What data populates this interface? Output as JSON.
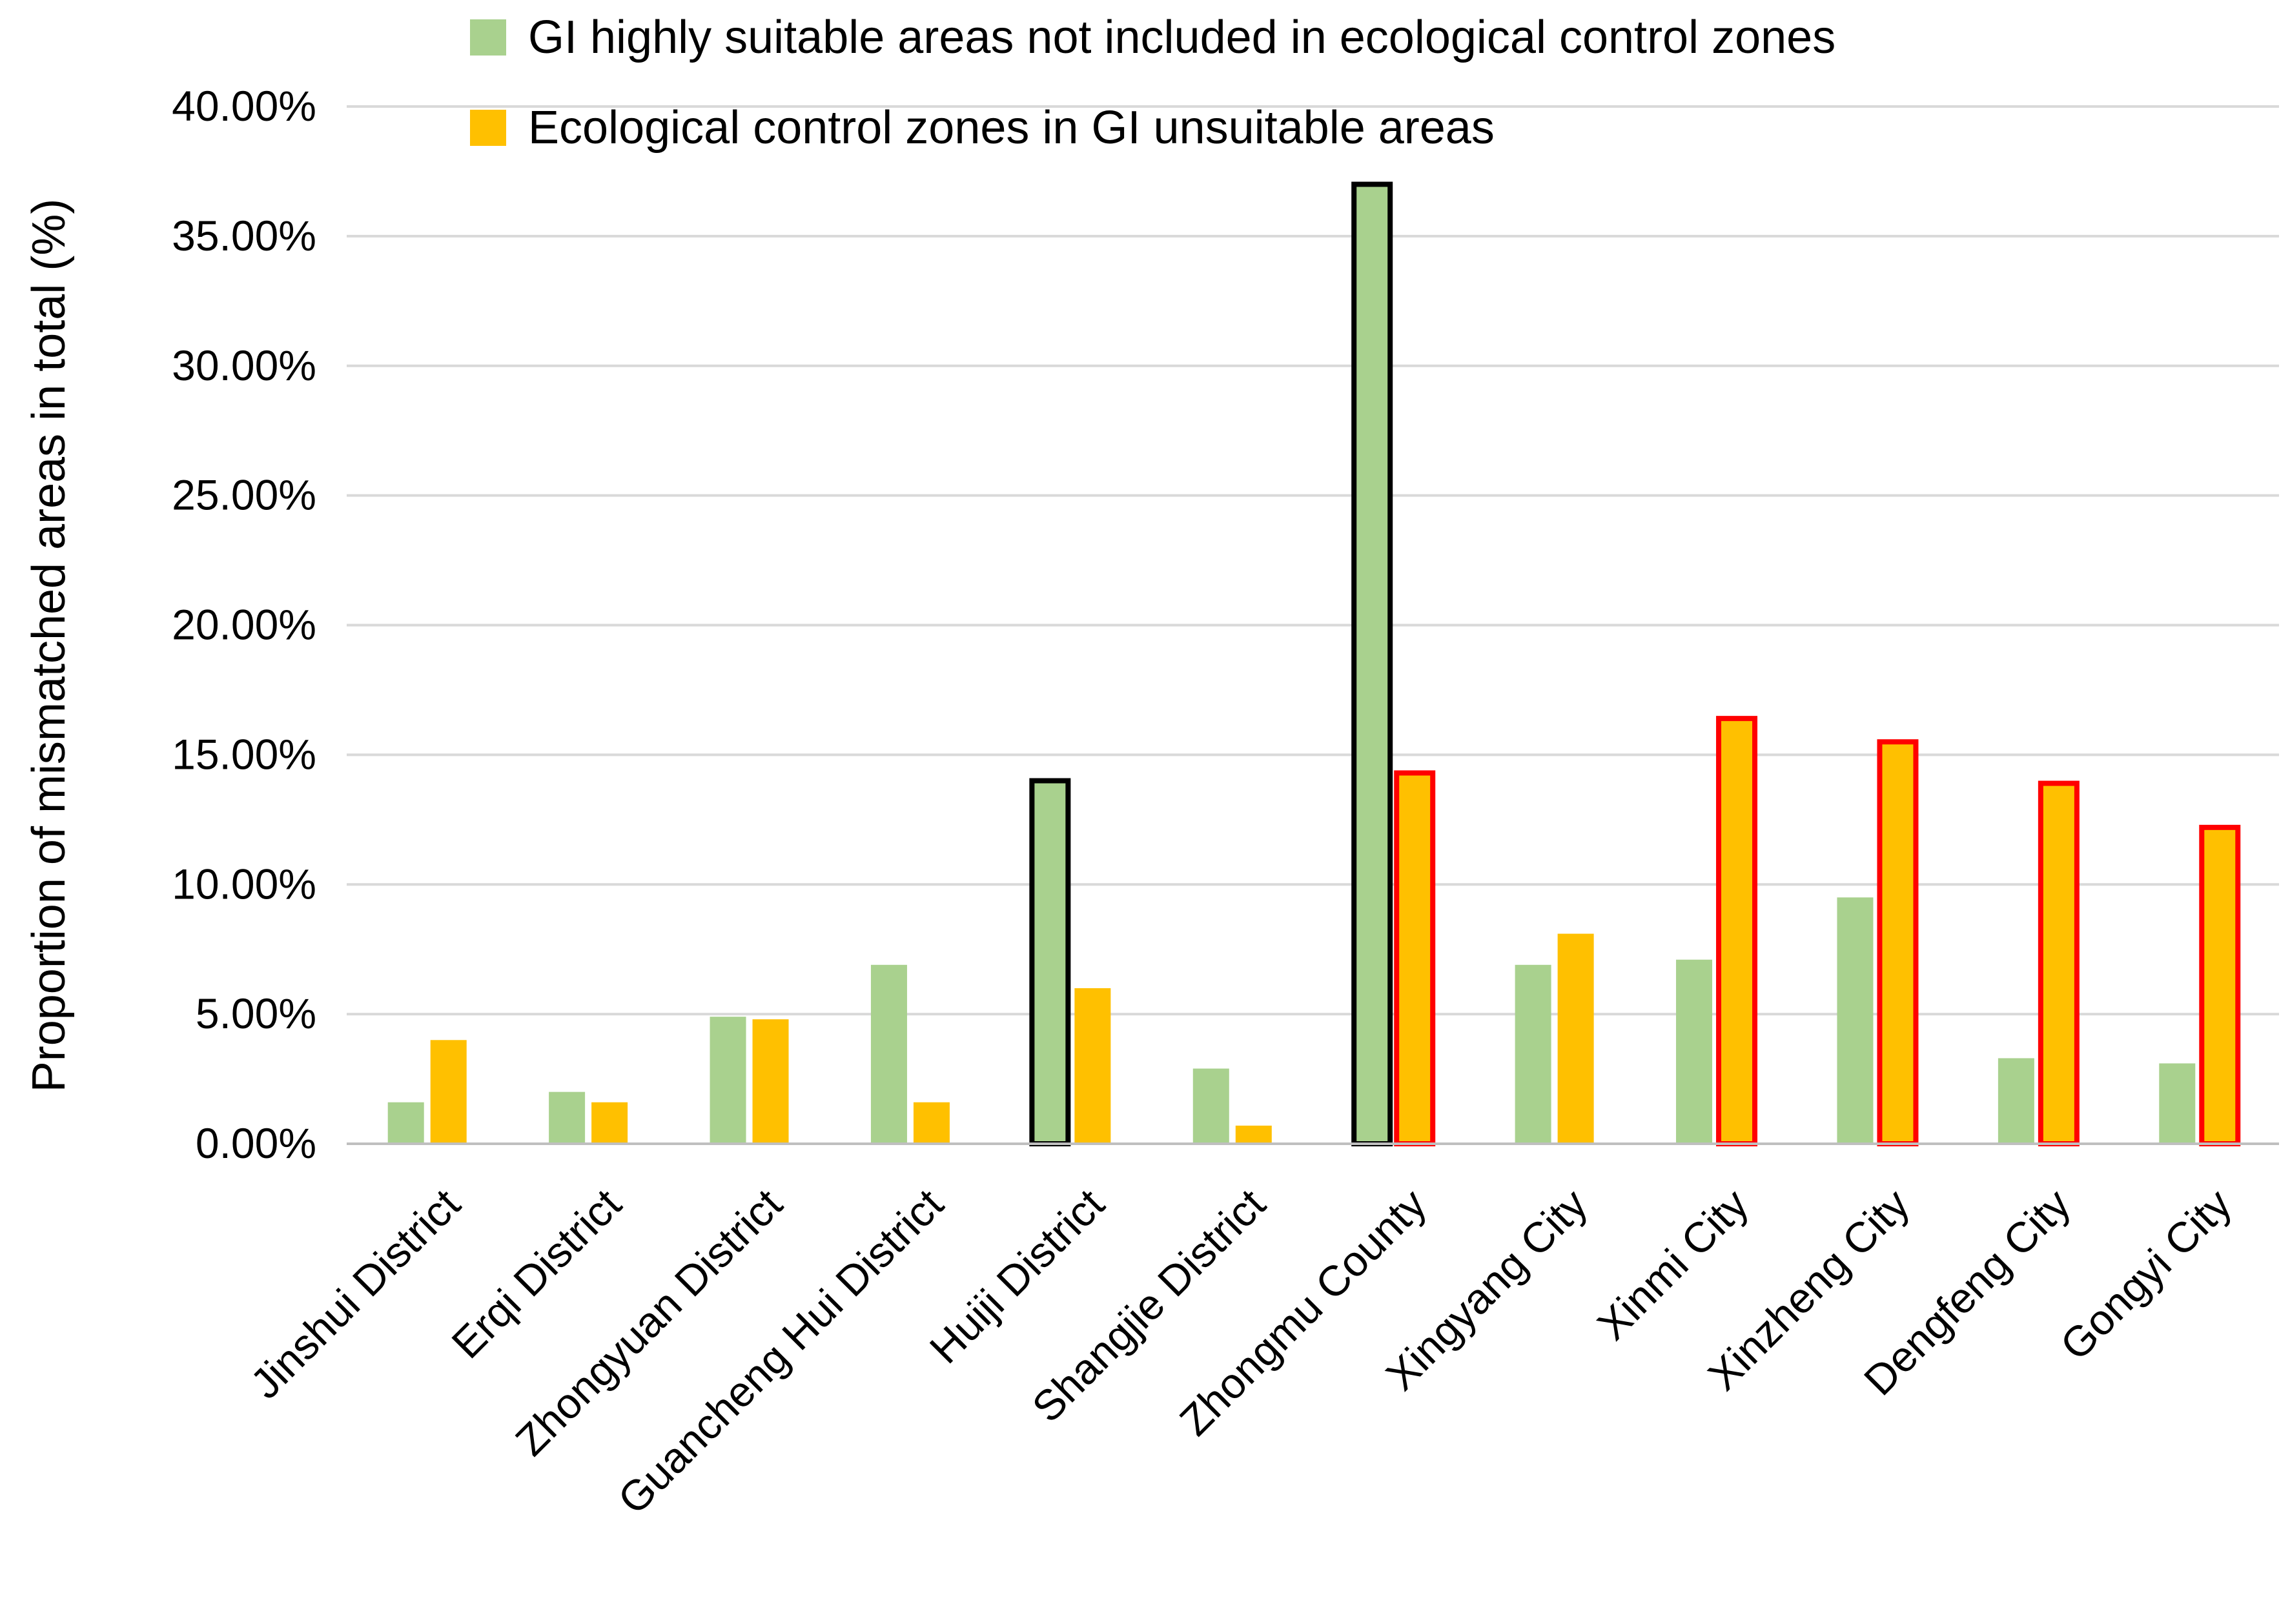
{
  "chart_data": {
    "type": "bar",
    "title": "",
    "xlabel": "",
    "ylabel": "Proportion of mismatched areas in total (%)",
    "ylim": [
      0,
      40
    ],
    "yticks": [
      "0.00%",
      "5.00%",
      "10.00%",
      "15.00%",
      "20.00%",
      "25.00%",
      "30.00%",
      "35.00%",
      "40.00%"
    ],
    "grid": true,
    "legend_position": "top",
    "categories": [
      "Jinshui District",
      "Erqi District",
      "Zhongyuan District",
      "Guancheng Hui District",
      "Huiji District",
      "Shangjie District",
      "Zhongmu County",
      "Xingyang City",
      "Xinmi City",
      "Xinzheng City",
      "Dengfeng City",
      "Gongyi City"
    ],
    "series": [
      {
        "name": "GI highly suitable areas not included in ecological control zones",
        "color": "#a9d18e",
        "highlight_color": "#000000",
        "values": [
          1.6,
          2.0,
          4.9,
          6.9,
          14.0,
          2.9,
          37.0,
          6.9,
          7.1,
          9.5,
          3.3,
          3.1
        ],
        "highlighted": [
          false,
          false,
          false,
          false,
          true,
          false,
          true,
          false,
          false,
          false,
          false,
          false
        ]
      },
      {
        "name": "Ecological control zones in GI unsuitable areas",
        "color": "#ffc000",
        "highlight_color": "#ff0000",
        "values": [
          4.0,
          1.6,
          4.8,
          1.6,
          6.0,
          0.7,
          14.3,
          8.1,
          16.4,
          15.5,
          13.9,
          12.2
        ],
        "highlighted": [
          false,
          false,
          false,
          false,
          false,
          false,
          true,
          false,
          true,
          true,
          true,
          true
        ]
      }
    ]
  }
}
